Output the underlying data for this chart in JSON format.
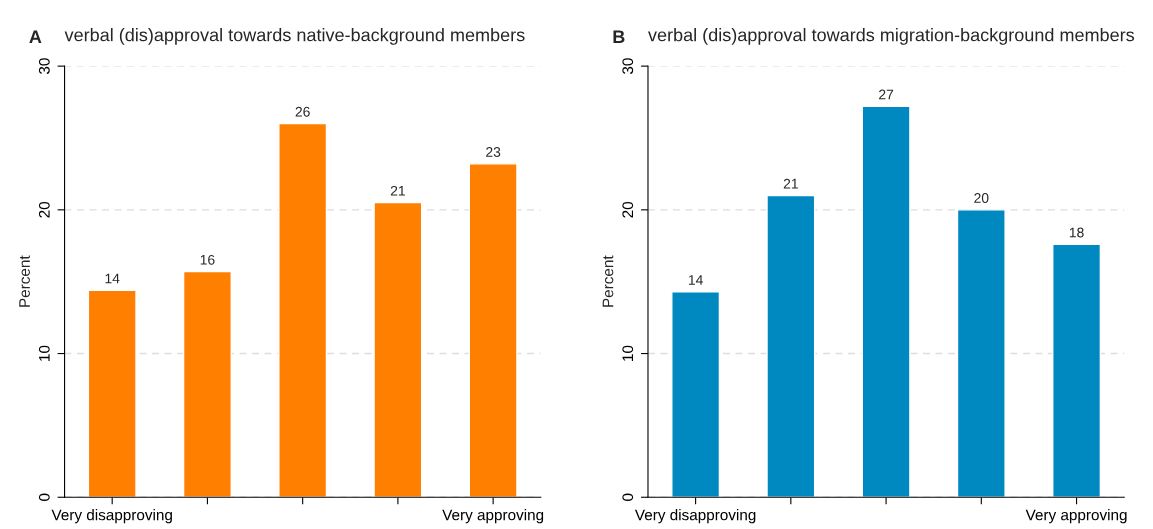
{
  "chart_data": [
    {
      "type": "bar",
      "title": "verbal (dis)approval towards native-background members",
      "annotations": [
        "A"
      ],
      "ylabel": "Percent",
      "categories": [
        "Very disapproving",
        null,
        null,
        null,
        "Very approving"
      ],
      "values": [
        14.4,
        15.7,
        26.0,
        20.5,
        23.2
      ],
      "value_labels": [
        "14",
        "16",
        "26",
        "21",
        "23"
      ],
      "color": "#ff7f00",
      "ylim": [
        0,
        30
      ],
      "yticks": [
        0,
        10,
        20,
        30
      ],
      "grid": "y"
    },
    {
      "type": "bar",
      "title": "verbal (dis)approval towards migration-background members",
      "annotations": [
        "B"
      ],
      "ylabel": "Percent",
      "categories": [
        "Very disapproving",
        null,
        null,
        null,
        "Very approving"
      ],
      "values": [
        14.3,
        21.0,
        27.2,
        20.0,
        17.6
      ],
      "value_labels": [
        "14",
        "21",
        "27",
        "20",
        "18"
      ],
      "color": "#0089c0",
      "ylim": [
        0,
        30
      ],
      "yticks": [
        0,
        10,
        20,
        30
      ],
      "grid": "y"
    }
  ]
}
